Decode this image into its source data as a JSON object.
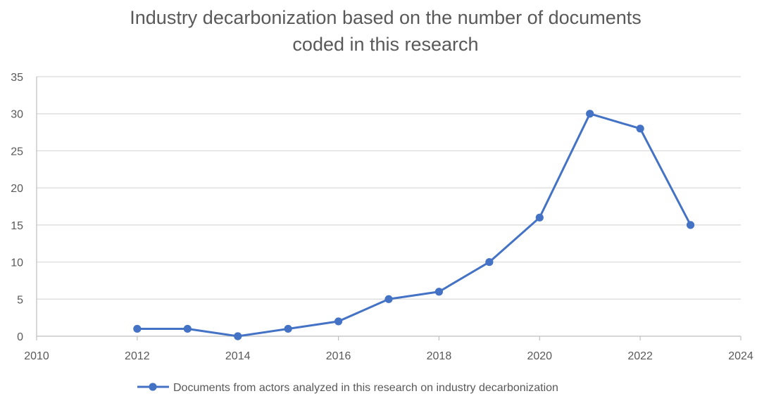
{
  "chart_data": {
    "type": "scatter",
    "title_lines": [
      "Industry decarbonization based on the number of documents",
      "coded in this research"
    ],
    "xlabel": "",
    "ylabel": "",
    "xlim": [
      2010,
      2024
    ],
    "ylim": [
      0,
      35
    ],
    "x_ticks": [
      2010,
      2012,
      2014,
      2016,
      2018,
      2020,
      2022,
      2024
    ],
    "y_ticks": [
      0,
      5,
      10,
      15,
      20,
      25,
      30,
      35
    ],
    "grid": "horizontal",
    "legend_position": "bottom",
    "series": [
      {
        "name": "Documents from actors analyzed in this research on industry decarbonization",
        "color": "#4472C4",
        "marker": "circle",
        "points": [
          {
            "x": 2012,
            "y": 1
          },
          {
            "x": 2013,
            "y": 1
          },
          {
            "x": 2014,
            "y": 0
          },
          {
            "x": 2015,
            "y": 1
          },
          {
            "x": 2016,
            "y": 2
          },
          {
            "x": 2017,
            "y": 5
          },
          {
            "x": 2018,
            "y": 6
          },
          {
            "x": 2019,
            "y": 10
          },
          {
            "x": 2020,
            "y": 16
          },
          {
            "x": 2021,
            "y": 30
          },
          {
            "x": 2022,
            "y": 28
          },
          {
            "x": 2023,
            "y": 15
          }
        ]
      }
    ]
  }
}
